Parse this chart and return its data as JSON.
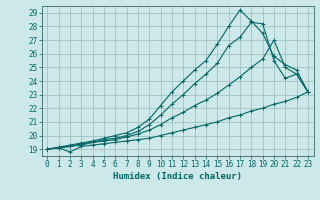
{
  "xlabel": "Humidex (Indice chaleur)",
  "ylabel": "",
  "bg_color": "#cce8e8",
  "grid_color": "#99bbbb",
  "line_color": "#006666",
  "spine_color": "#336666",
  "xlim": [
    -0.5,
    23.5
  ],
  "ylim": [
    18.5,
    29.5
  ],
  "xticks": [
    0,
    1,
    2,
    3,
    4,
    5,
    6,
    7,
    8,
    9,
    10,
    11,
    12,
    13,
    14,
    15,
    16,
    17,
    18,
    19,
    20,
    21,
    22,
    23
  ],
  "yticks": [
    19,
    20,
    21,
    22,
    23,
    24,
    25,
    26,
    27,
    28,
    29
  ],
  "lines": [
    {
      "x": [
        0,
        1,
        2,
        3,
        4,
        5,
        6,
        7,
        8,
        9,
        10,
        11,
        12,
        13,
        14,
        15,
        16,
        17,
        18,
        19,
        20,
        21,
        22,
        23
      ],
      "y": [
        19.0,
        19.1,
        18.8,
        19.2,
        19.3,
        19.4,
        19.5,
        19.6,
        19.7,
        19.8,
        20.0,
        20.2,
        20.4,
        20.6,
        20.8,
        21.0,
        21.3,
        21.5,
        21.8,
        22.0,
        22.3,
        22.5,
        22.8,
        23.2
      ]
    },
    {
      "x": [
        0,
        1,
        2,
        3,
        4,
        5,
        6,
        7,
        8,
        9,
        10,
        11,
        12,
        13,
        14,
        15,
        16,
        17,
        18,
        19,
        20,
        21,
        22,
        23
      ],
      "y": [
        19.0,
        19.1,
        19.2,
        19.3,
        19.5,
        19.6,
        19.7,
        19.9,
        20.1,
        20.4,
        20.8,
        21.3,
        21.7,
        22.2,
        22.6,
        23.1,
        23.7,
        24.3,
        25.0,
        25.6,
        27.0,
        25.0,
        24.5,
        23.2
      ]
    },
    {
      "x": [
        0,
        1,
        2,
        3,
        4,
        5,
        6,
        7,
        8,
        9,
        10,
        11,
        12,
        13,
        14,
        15,
        16,
        17,
        18,
        19,
        20,
        21,
        22,
        23
      ],
      "y": [
        19.0,
        19.1,
        19.2,
        19.4,
        19.5,
        19.7,
        19.8,
        20.0,
        20.3,
        20.8,
        21.5,
        22.3,
        23.0,
        23.8,
        24.5,
        25.3,
        26.6,
        27.2,
        28.3,
        28.2,
        25.5,
        24.2,
        24.5,
        23.2
      ]
    },
    {
      "x": [
        0,
        1,
        2,
        3,
        4,
        5,
        6,
        7,
        8,
        9,
        10,
        11,
        12,
        13,
        14,
        15,
        16,
        17,
        18,
        19,
        20,
        21,
        22,
        23
      ],
      "y": [
        19.0,
        19.15,
        19.3,
        19.45,
        19.6,
        19.8,
        20.0,
        20.2,
        20.6,
        21.2,
        22.2,
        23.2,
        24.0,
        24.8,
        25.5,
        26.7,
        28.0,
        29.2,
        28.4,
        27.5,
        25.8,
        25.2,
        24.8,
        23.2
      ]
    }
  ],
  "marker": "+",
  "markersize": 3,
  "linewidth": 0.8,
  "tick_fontsize": 5.5,
  "xlabel_fontsize": 6.5
}
